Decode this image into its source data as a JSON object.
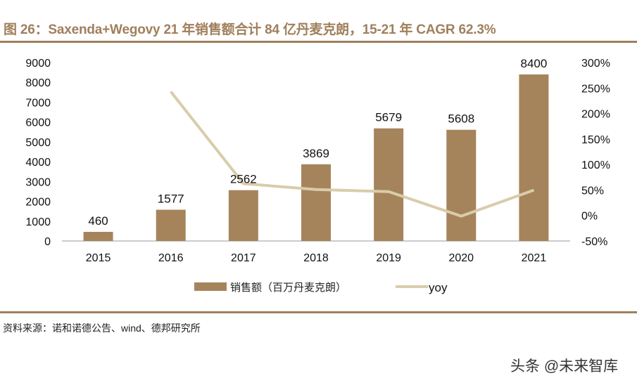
{
  "title": "图 26：Saxenda+Wegovy 21 年销售额合计 84 亿丹麦克朗，15-21 年 CAGR 62.3%",
  "source": "资料来源：诺和诺德公告、wind、德邦研究所",
  "watermark": "头条 @未来智库",
  "chart_data": {
    "type": "bar+line",
    "categories": [
      "2015",
      "2016",
      "2017",
      "2018",
      "2019",
      "2020",
      "2021"
    ],
    "series": [
      {
        "name": "销售额（百万丹麦克朗）",
        "type": "bar",
        "axis": "left",
        "color": "#a6845b",
        "values": [
          460,
          1577,
          2562,
          3869,
          5679,
          5608,
          8400
        ]
      },
      {
        "name": "yoy",
        "type": "line",
        "axis": "right",
        "color": "#d9ccaa",
        "values": [
          null,
          242.8,
          62.5,
          51.0,
          46.8,
          -1.3,
          49.8
        ]
      }
    ],
    "y_left": {
      "range": [
        0,
        9000
      ],
      "ticks": [
        "0",
        "1000",
        "2000",
        "3000",
        "4000",
        "5000",
        "6000",
        "7000",
        "8000",
        "9000"
      ]
    },
    "y_right": {
      "range": [
        -50,
        300
      ],
      "ticks": [
        "-50%",
        "0%",
        "50%",
        "100%",
        "150%",
        "200%",
        "250%",
        "300%"
      ]
    },
    "data_labels": [
      "460",
      "1577",
      "2562",
      "3869",
      "5679",
      "5608",
      "8400"
    ],
    "grid": false,
    "legend_position": "bottom"
  }
}
